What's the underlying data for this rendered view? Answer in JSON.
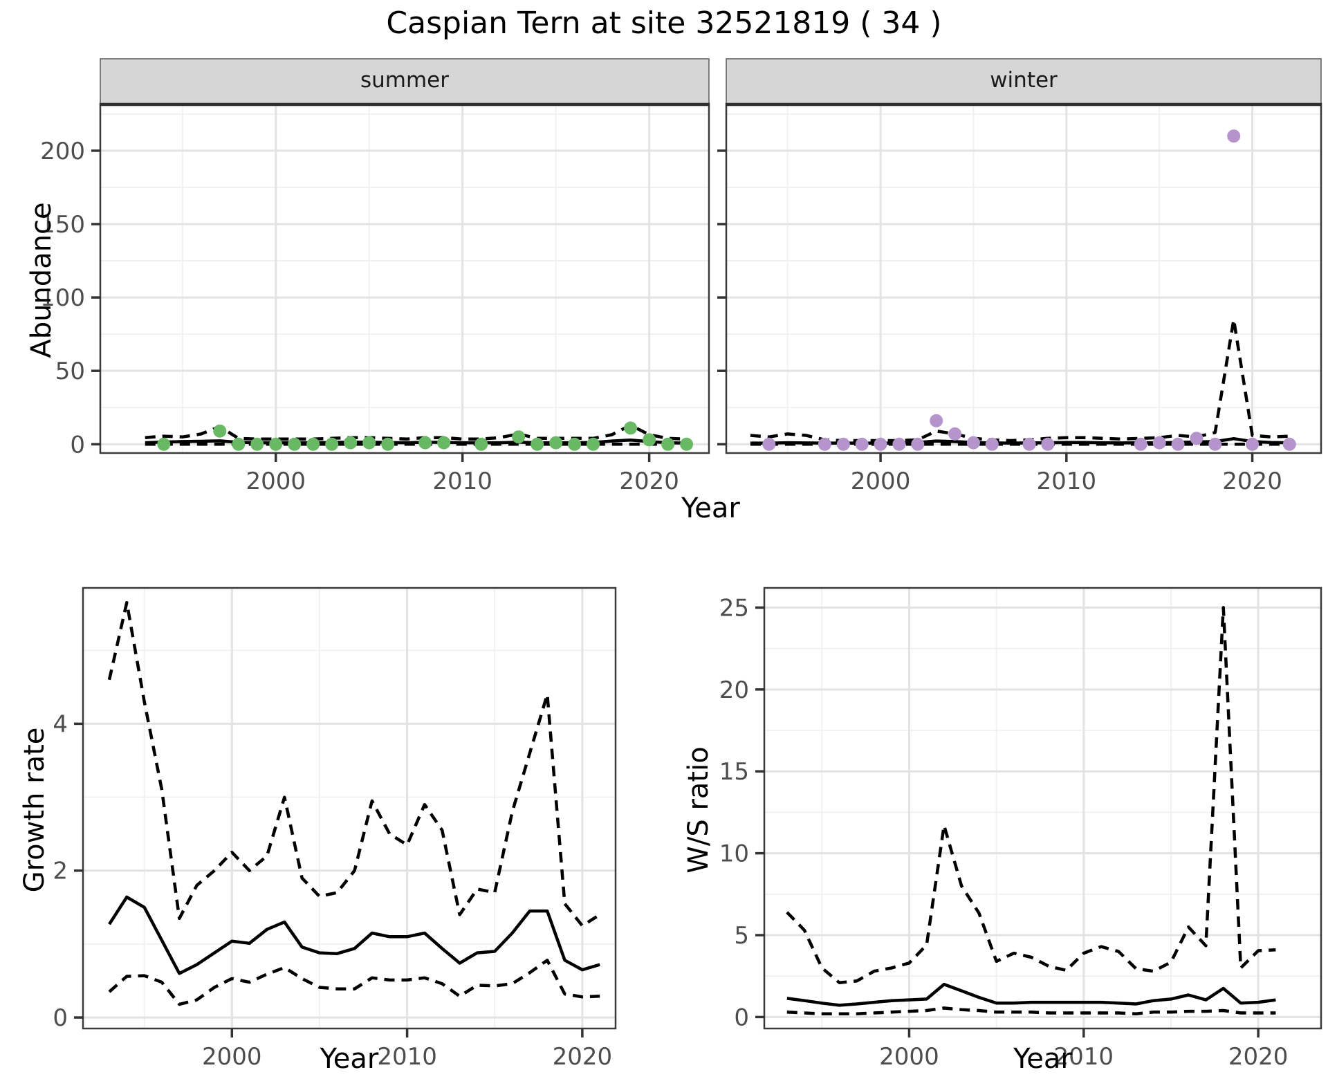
{
  "title": "Caspian Tern at site 32521819 ( 34 )",
  "colors": {
    "summer_point": "#69b964",
    "winter_point": "#b494ca",
    "line": "#000000",
    "strip_bg": "#d6d6d6",
    "panel_border": "#3a3a3a",
    "grid_major": "#e3e3e3",
    "grid_minor": "#f0f0f0",
    "tick_label": "#4d4d4d"
  },
  "chart_data": [
    {
      "type": "line",
      "facet_label": "summer",
      "xlabel": "Year",
      "ylabel": "Abundance",
      "xlim": [
        1993,
        2022
      ],
      "ylim": [
        0,
        225
      ],
      "xticks": [
        2000,
        2010,
        2020
      ],
      "yticks": [
        0,
        50,
        100,
        150,
        200
      ],
      "x": [
        1993,
        1994,
        1995,
        1996,
        1997,
        1998,
        1999,
        2000,
        2001,
        2002,
        2003,
        2004,
        2005,
        2006,
        2007,
        2008,
        2009,
        2010,
        2011,
        2012,
        2013,
        2014,
        2015,
        2016,
        2017,
        2018,
        2019,
        2020,
        2021,
        2022
      ],
      "series": [
        {
          "name": "estimate",
          "style": "solid",
          "values": [
            1.0,
            1.5,
            1.8,
            2.0,
            2.3,
            1.3,
            1.0,
            1.0,
            1.0,
            1.0,
            1.2,
            1.4,
            1.4,
            1.1,
            1.0,
            1.3,
            1.3,
            1.0,
            1.0,
            1.0,
            1.4,
            1.0,
            1.0,
            1.0,
            1.2,
            2.2,
            2.8,
            1.8,
            1.0,
            0.8
          ]
        },
        {
          "name": "upper_ci",
          "style": "dashed",
          "values": [
            4.5,
            5.5,
            5.0,
            7.0,
            12.0,
            4.0,
            3.5,
            3.5,
            3.5,
            3.5,
            4.0,
            4.5,
            4.5,
            4.0,
            3.5,
            4.5,
            4.5,
            3.5,
            3.5,
            4.5,
            7.0,
            4.0,
            4.0,
            4.0,
            4.0,
            6.5,
            13.0,
            6.5,
            4.0,
            3.5
          ]
        },
        {
          "name": "lower_ci",
          "style": "dashed",
          "values": [
            0,
            0,
            0,
            0,
            0,
            0,
            0,
            0,
            0,
            0,
            0,
            0,
            0,
            0,
            0,
            0,
            0,
            0,
            0,
            0,
            0,
            0,
            0,
            0,
            0,
            0,
            0,
            0,
            0,
            0
          ]
        }
      ],
      "observations": {
        "years": [
          1994,
          1997,
          1998,
          1999,
          2000,
          2001,
          2002,
          2003,
          2004,
          2005,
          2006,
          2008,
          2009,
          2011,
          2013,
          2014,
          2015,
          2016,
          2017,
          2019,
          2020,
          2021,
          2022
        ],
        "values": [
          0,
          9,
          0,
          0,
          0,
          0,
          0,
          0,
          1,
          1,
          0,
          1,
          1,
          0,
          5,
          0,
          1,
          0,
          0,
          11,
          3,
          0,
          0
        ]
      },
      "point_color": "#69b964"
    },
    {
      "type": "line",
      "facet_label": "winter",
      "xlabel": "Year",
      "ylabel": "",
      "xlim": [
        1993,
        2022
      ],
      "ylim": [
        0,
        225
      ],
      "xticks": [
        2000,
        2010,
        2020
      ],
      "yticks": [
        0,
        50,
        100,
        150,
        200
      ],
      "x": [
        1993,
        1994,
        1995,
        1996,
        1997,
        1998,
        1999,
        2000,
        2001,
        2002,
        2003,
        2004,
        2005,
        2006,
        2007,
        2008,
        2009,
        2010,
        2011,
        2012,
        2013,
        2014,
        2015,
        2016,
        2017,
        2018,
        2019,
        2020,
        2021,
        2022
      ],
      "series": [
        {
          "name": "estimate",
          "style": "solid",
          "values": [
            0.8,
            0.8,
            1.0,
            0.9,
            0.8,
            0.8,
            0.8,
            0.8,
            0.8,
            1.2,
            2.2,
            1.8,
            1.2,
            0.9,
            0.8,
            0.9,
            1.0,
            1.2,
            1.2,
            1.0,
            0.9,
            1.0,
            1.0,
            1.2,
            1.6,
            1.8,
            3.8,
            1.8,
            1.2,
            1.0
          ]
        },
        {
          "name": "upper_ci",
          "style": "dashed",
          "values": [
            6.0,
            5.0,
            7.0,
            6.0,
            3.0,
            2.5,
            2.5,
            2.5,
            2.5,
            3.0,
            9.0,
            7.0,
            4.0,
            3.0,
            2.5,
            3.0,
            4.0,
            4.5,
            4.5,
            4.0,
            3.5,
            4.0,
            4.5,
            6.0,
            5.0,
            8.0,
            85.0,
            6.0,
            5.0,
            5.5
          ]
        },
        {
          "name": "lower_ci",
          "style": "dashed",
          "values": [
            0,
            0,
            0,
            0,
            0,
            0,
            0,
            0,
            0,
            0,
            0,
            0,
            0,
            0,
            0,
            0,
            0,
            0,
            0,
            0,
            0,
            0,
            0,
            0,
            0,
            0,
            0,
            0,
            0,
            0
          ]
        }
      ],
      "observations": {
        "years": [
          1994,
          1997,
          1998,
          1999,
          2000,
          2001,
          2002,
          2003,
          2004,
          2005,
          2006,
          2008,
          2009,
          2014,
          2015,
          2016,
          2017,
          2018,
          2019,
          2020,
          2022
        ],
        "values": [
          0,
          0,
          0,
          0,
          0,
          0,
          0,
          16,
          7,
          1,
          0,
          0,
          0,
          0,
          1,
          0,
          4,
          0,
          210,
          0,
          0
        ]
      },
      "point_color": "#b494ca"
    },
    {
      "type": "line",
      "facet_label": "",
      "xlabel": "Year",
      "ylabel": "Growth rate",
      "xlim": [
        1993,
        2021
      ],
      "ylim": [
        0,
        5.8
      ],
      "xticks": [
        2000,
        2010,
        2020
      ],
      "yticks": [
        0,
        2,
        4
      ],
      "x": [
        1993,
        1994,
        1995,
        1996,
        1997,
        1998,
        1999,
        2000,
        2001,
        2002,
        2003,
        2004,
        2005,
        2006,
        2007,
        2008,
        2009,
        2010,
        2011,
        2012,
        2013,
        2014,
        2015,
        2016,
        2017,
        2018,
        2019,
        2020,
        2021
      ],
      "series": [
        {
          "name": "estimate",
          "style": "solid",
          "values": [
            1.27,
            1.64,
            1.5,
            1.05,
            0.6,
            0.72,
            0.88,
            1.04,
            1.01,
            1.2,
            1.3,
            0.96,
            0.88,
            0.87,
            0.94,
            1.15,
            1.1,
            1.1,
            1.15,
            0.94,
            0.74,
            0.88,
            0.9,
            1.15,
            1.45,
            1.45,
            0.78,
            0.65,
            0.72
          ]
        },
        {
          "name": "upper_ci",
          "style": "dashed",
          "values": [
            4.6,
            5.65,
            4.3,
            3.1,
            1.35,
            1.8,
            2.0,
            2.25,
            2.0,
            2.2,
            3.0,
            1.9,
            1.65,
            1.7,
            2.0,
            2.95,
            2.5,
            2.35,
            2.9,
            2.55,
            1.4,
            1.75,
            1.7,
            2.8,
            3.6,
            4.4,
            1.55,
            1.25,
            1.4
          ]
        },
        {
          "name": "lower_ci",
          "style": "dashed",
          "values": [
            0.35,
            0.56,
            0.57,
            0.48,
            0.18,
            0.24,
            0.41,
            0.53,
            0.48,
            0.59,
            0.68,
            0.53,
            0.41,
            0.39,
            0.39,
            0.54,
            0.51,
            0.51,
            0.54,
            0.46,
            0.29,
            0.44,
            0.43,
            0.46,
            0.61,
            0.78,
            0.32,
            0.28,
            0.29
          ]
        }
      ],
      "observations": null,
      "point_color": ""
    },
    {
      "type": "line",
      "facet_label": "",
      "xlabel": "Year",
      "ylabel": "W/S ratio",
      "xlim": [
        1993,
        2021
      ],
      "ylim": [
        0,
        25
      ],
      "xticks": [
        2000,
        2010,
        2020
      ],
      "yticks": [
        0,
        5,
        10,
        15,
        20,
        25
      ],
      "x": [
        1993,
        1994,
        1995,
        1996,
        1997,
        1998,
        1999,
        2000,
        2001,
        2002,
        2003,
        2004,
        2005,
        2006,
        2007,
        2008,
        2009,
        2010,
        2011,
        2012,
        2013,
        2014,
        2015,
        2016,
        2017,
        2018,
        2019,
        2020,
        2021
      ],
      "series": [
        {
          "name": "estimate",
          "style": "solid",
          "values": [
            1.14,
            1.0,
            0.85,
            0.72,
            0.8,
            0.9,
            1.0,
            1.05,
            1.1,
            2.0,
            1.6,
            1.2,
            0.85,
            0.85,
            0.9,
            0.9,
            0.9,
            0.9,
            0.9,
            0.85,
            0.8,
            1.0,
            1.1,
            1.35,
            1.05,
            1.75,
            0.85,
            0.9,
            1.05
          ]
        },
        {
          "name": "upper_ci",
          "style": "dashed",
          "values": [
            6.4,
            5.3,
            3.0,
            2.1,
            2.2,
            2.8,
            3.0,
            3.3,
            4.4,
            11.7,
            8.0,
            6.35,
            3.4,
            3.9,
            3.65,
            3.1,
            2.85,
            3.9,
            4.3,
            4.0,
            2.95,
            2.8,
            3.35,
            5.5,
            4.35,
            25.0,
            3.0,
            4.05,
            4.1
          ]
        },
        {
          "name": "lower_ci",
          "style": "dashed",
          "values": [
            0.3,
            0.25,
            0.2,
            0.2,
            0.2,
            0.25,
            0.3,
            0.35,
            0.4,
            0.55,
            0.45,
            0.4,
            0.3,
            0.3,
            0.3,
            0.25,
            0.25,
            0.25,
            0.25,
            0.25,
            0.2,
            0.3,
            0.3,
            0.35,
            0.35,
            0.4,
            0.25,
            0.25,
            0.25
          ]
        }
      ],
      "observations": null,
      "point_color": ""
    }
  ]
}
